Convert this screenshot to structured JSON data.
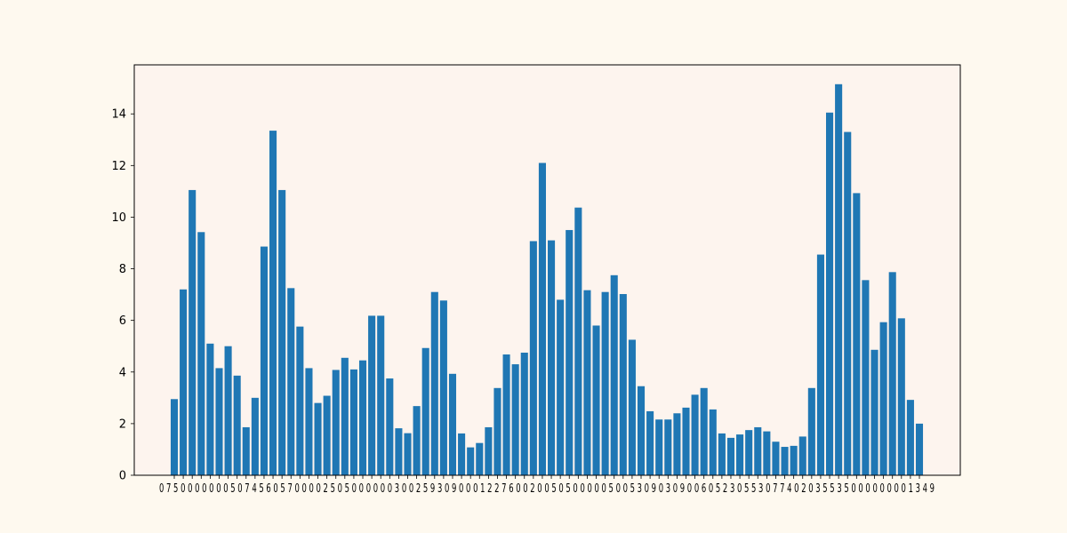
{
  "chart_data": {
    "type": "bar",
    "title": "",
    "xlabel": "",
    "ylabel": "",
    "ylim": [
      0,
      15.9
    ],
    "yticks": [
      0,
      2,
      4,
      6,
      8,
      10,
      12,
      14
    ],
    "bar_color": "#1f77b4",
    "plot_bg": "#fdf4ee",
    "page_bg": "#fef9ef",
    "x_tick_labels_visible_text": "0 7 5 0 0 0 0 0 0 0 5 0 7 4 5 6 0 5 7 0 0 0 0 2 5 0 5 0 0 0 0 0 0 3 0 0 2 5 9 3 0 9 0 0 0 1 2 2 7 6 0 0 2 0 0 5 0 5 0 0 0 0 0 5 0 0 5 3 0 9 0 3 0 9 0 0 6 0 5 2 3 0 5 5 3 0 7 7 4 0 2 0 3 5 5 3 5 0 0 0 0 0 0 0 0 1 3 4 9",
    "values": [
      2.95,
      7.2,
      11.05,
      9.42,
      5.1,
      4.15,
      5.0,
      3.86,
      1.86,
      3.0,
      8.86,
      13.35,
      11.05,
      7.25,
      5.76,
      4.15,
      2.8,
      3.08,
      4.08,
      4.55,
      4.1,
      4.45,
      6.18,
      6.18,
      3.75,
      1.82,
      1.63,
      2.68,
      4.93,
      7.1,
      6.77,
      3.93,
      1.62,
      1.08,
      1.25,
      1.86,
      3.38,
      4.68,
      4.3,
      4.75,
      9.07,
      12.1,
      9.1,
      6.8,
      9.5,
      10.37,
      7.17,
      5.8,
      7.1,
      7.75,
      7.02,
      5.25,
      3.45,
      2.48,
      2.16,
      2.16,
      2.4,
      2.62,
      3.12,
      3.38,
      2.55,
      1.62,
      1.45,
      1.58,
      1.75,
      1.86,
      1.7,
      1.3,
      1.1,
      1.14,
      1.5,
      3.38,
      8.55,
      14.05,
      15.15,
      13.3,
      10.93,
      7.56,
      4.86,
      5.93,
      7.87,
      6.08,
      2.92,
      2.0
    ]
  }
}
